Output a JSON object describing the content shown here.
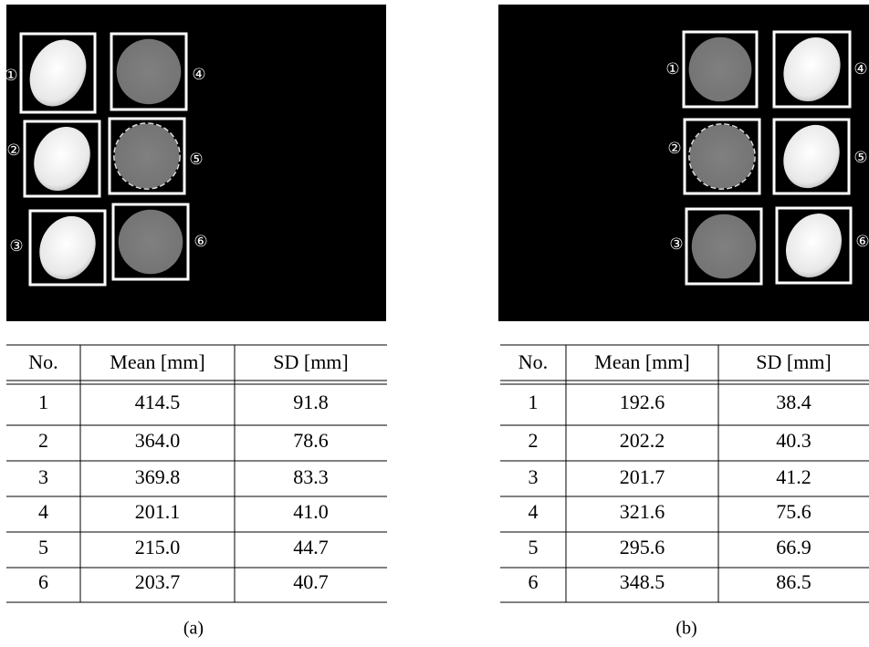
{
  "panels": [
    {
      "image": {
        "labels": [
          "①",
          "②",
          "③",
          "④",
          "⑤",
          "⑥"
        ]
      },
      "table": {
        "header": [
          "No.",
          "Mean [mm]",
          "SD [mm]"
        ],
        "rows": [
          [
            "1",
            "414.5",
            "91.8"
          ],
          [
            "2",
            "364.0",
            "78.6"
          ],
          [
            "3",
            "369.8",
            "83.3"
          ],
          [
            "4",
            "201.1",
            "41.0"
          ],
          [
            "5",
            "215.0",
            "44.7"
          ],
          [
            "6",
            "203.7",
            "40.7"
          ]
        ]
      },
      "caption": "(a)"
    },
    {
      "image": {
        "labels": [
          "①",
          "②",
          "③",
          "④",
          "⑤",
          "⑥"
        ]
      },
      "table": {
        "header": [
          "No.",
          "Mean [mm]",
          "SD [mm]"
        ],
        "rows": [
          [
            "1",
            "192.6",
            "38.4"
          ],
          [
            "2",
            "202.2",
            "40.3"
          ],
          [
            "3",
            "201.7",
            "41.2"
          ],
          [
            "4",
            "321.6",
            "75.6"
          ],
          [
            "5",
            "295.6",
            "66.9"
          ],
          [
            "6",
            "348.5",
            "86.5"
          ]
        ]
      },
      "caption": "(b)"
    }
  ]
}
